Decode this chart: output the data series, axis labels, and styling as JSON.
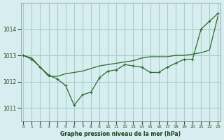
{
  "title": "Graphe pression niveau de la mer (hPa)",
  "background_color": "#d6eef0",
  "grid_color": "#aacccc",
  "line_color": "#2d6a2d",
  "x_ticks": [
    0,
    1,
    2,
    3,
    4,
    5,
    6,
    7,
    8,
    9,
    10,
    11,
    12,
    13,
    14,
    15,
    16,
    17,
    18,
    19,
    20,
    21,
    22,
    23
  ],
  "y_ticks": [
    1011,
    1012,
    1013,
    1014
  ],
  "ylim": [
    1010.5,
    1015.0
  ],
  "xlim": [
    -0.3,
    23.3
  ],
  "line1_x": [
    0,
    1,
    2,
    3,
    4,
    5,
    6,
    7,
    8,
    9,
    10,
    11,
    12,
    13,
    14,
    15,
    16,
    17,
    18,
    19,
    20,
    21,
    22,
    23
  ],
  "line1_y": [
    1013.0,
    1012.85,
    1012.55,
    1012.25,
    1012.1,
    1011.85,
    1011.1,
    1011.5,
    1011.6,
    1012.15,
    1012.4,
    1012.45,
    1012.65,
    1012.6,
    1012.55,
    1012.35,
    1012.35,
    1012.55,
    1012.7,
    1012.85,
    1012.85,
    1014.0,
    1014.3,
    1014.6
  ],
  "line2_x": [
    0,
    1,
    2,
    3,
    4,
    5,
    6,
    7,
    8,
    9,
    10,
    11,
    12,
    13,
    14,
    15,
    16,
    17,
    18,
    19,
    20,
    21,
    22,
    23
  ],
  "line2_y": [
    1013.0,
    1012.9,
    1012.55,
    1012.2,
    1012.2,
    1012.3,
    1012.35,
    1012.4,
    1012.5,
    1012.6,
    1012.65,
    1012.7,
    1012.75,
    1012.8,
    1012.9,
    1012.95,
    1012.95,
    1012.95,
    1013.0,
    1013.0,
    1013.05,
    1013.1,
    1013.2,
    1014.5
  ],
  "tick_color": "#2d4d2d",
  "label_color": "#1a3a1a"
}
